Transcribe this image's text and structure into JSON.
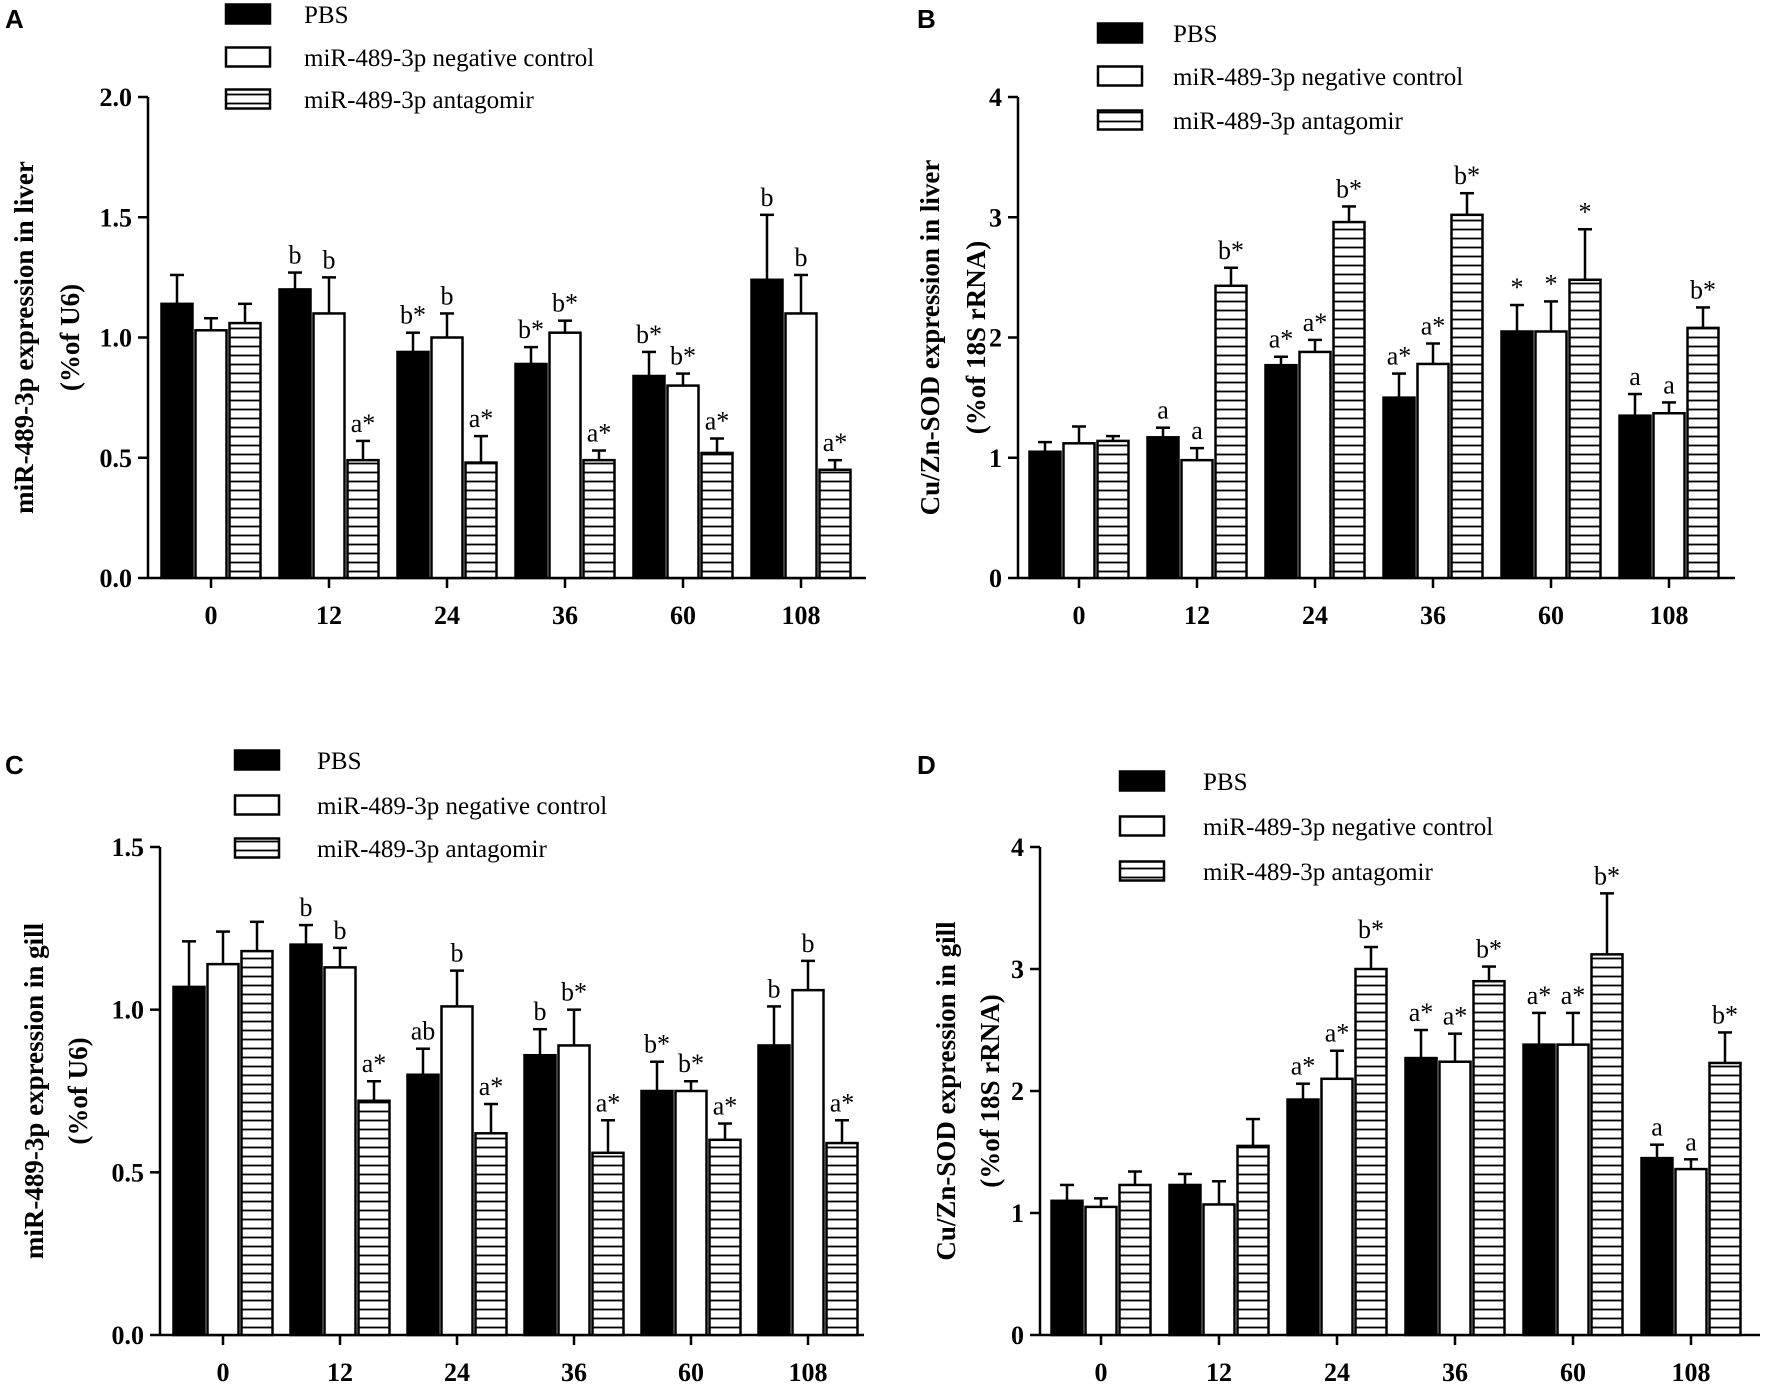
{
  "series_names": [
    "PBS",
    "miR-489-3p negative control",
    "miR-489-3p antagomir"
  ],
  "colors": {
    "pbs": "#000000",
    "bar_outline": "#000000",
    "background": "#ffffff"
  },
  "chart_data": [
    {
      "panel": "A",
      "type": "bar",
      "ylabel_line1": "miR-489-3p expression in liver",
      "ylabel_line2": "(%of U6)",
      "categories": [
        "0",
        "12",
        "24",
        "36",
        "60",
        "108"
      ],
      "ylim": [
        0,
        2.0
      ],
      "yticks": [
        "0.0",
        "0.5",
        "1.0",
        "1.5",
        "2.0"
      ],
      "ytick_values": [
        0,
        0.5,
        1.0,
        1.5,
        2.0
      ],
      "series": [
        {
          "name": "PBS",
          "values": [
            1.14,
            1.2,
            0.94,
            0.89,
            0.84,
            1.24
          ],
          "errors": [
            0.12,
            0.07,
            0.08,
            0.07,
            0.1,
            0.27
          ],
          "labels": [
            "",
            "b",
            "b*",
            "b*",
            "b*",
            "b"
          ]
        },
        {
          "name": "miR-489-3p negative control",
          "values": [
            1.03,
            1.1,
            1.0,
            1.02,
            0.8,
            1.1
          ],
          "errors": [
            0.05,
            0.15,
            0.1,
            0.05,
            0.05,
            0.16
          ],
          "labels": [
            "",
            "b",
            "b",
            "b*",
            "b*",
            "b"
          ]
        },
        {
          "name": "miR-489-3p antagomir",
          "values": [
            1.06,
            0.49,
            0.48,
            0.49,
            0.52,
            0.45
          ],
          "errors": [
            0.08,
            0.08,
            0.11,
            0.04,
            0.06,
            0.04
          ],
          "labels": [
            "",
            "a*",
            "a*",
            "a*",
            "a*",
            "a*"
          ]
        }
      ]
    },
    {
      "panel": "B",
      "type": "bar",
      "ylabel_line1": "Cu/Zn-SOD expression in liver",
      "ylabel_line2": "(%of 18S rRNA)",
      "categories": [
        "0",
        "12",
        "24",
        "36",
        "60",
        "108"
      ],
      "ylim": [
        0,
        4
      ],
      "yticks": [
        "0",
        "1",
        "2",
        "3",
        "4"
      ],
      "ytick_values": [
        0,
        1,
        2,
        3,
        4
      ],
      "series": [
        {
          "name": "PBS",
          "values": [
            1.05,
            1.17,
            1.77,
            1.5,
            2.05,
            1.35
          ],
          "errors": [
            0.08,
            0.08,
            0.07,
            0.2,
            0.22,
            0.18
          ],
          "labels": [
            "",
            "a",
            "a*",
            "a*",
            "*",
            "a"
          ]
        },
        {
          "name": "miR-489-3p negative control",
          "values": [
            1.12,
            0.98,
            1.88,
            1.78,
            2.05,
            1.37
          ],
          "errors": [
            0.14,
            0.1,
            0.1,
            0.17,
            0.25,
            0.09
          ],
          "labels": [
            "",
            "a",
            "a*",
            "a*",
            "*",
            "a"
          ]
        },
        {
          "name": "miR-489-3p antagomir",
          "values": [
            1.14,
            2.43,
            2.96,
            3.02,
            2.48,
            2.08
          ],
          "errors": [
            0.04,
            0.15,
            0.13,
            0.18,
            0.42,
            0.17
          ],
          "labels": [
            "",
            "b*",
            "b*",
            "b*",
            "*",
            "b*"
          ]
        }
      ]
    },
    {
      "panel": "C",
      "type": "bar",
      "ylabel_line1": "miR-489-3p expression in gill",
      "ylabel_line2": "(%of U6)",
      "categories": [
        "0",
        "12",
        "24",
        "36",
        "60",
        "108"
      ],
      "ylim": [
        0,
        1.5
      ],
      "yticks": [
        "0.0",
        "0.5",
        "1.0",
        "1.5"
      ],
      "ytick_values": [
        0,
        0.5,
        1.0,
        1.5
      ],
      "series": [
        {
          "name": "PBS",
          "values": [
            1.07,
            1.2,
            0.8,
            0.86,
            0.75,
            0.89
          ],
          "errors": [
            0.14,
            0.06,
            0.08,
            0.08,
            0.09,
            0.12
          ],
          "labels": [
            "",
            "b",
            "ab",
            "b",
            "b*",
            "b"
          ]
        },
        {
          "name": "miR-489-3p negative control",
          "values": [
            1.14,
            1.13,
            1.01,
            0.89,
            0.75,
            1.06
          ],
          "errors": [
            0.1,
            0.06,
            0.11,
            0.11,
            0.03,
            0.09
          ],
          "labels": [
            "",
            "b",
            "b",
            "b*",
            "b*",
            "b"
          ]
        },
        {
          "name": "miR-489-3p antagomir",
          "values": [
            1.18,
            0.72,
            0.62,
            0.56,
            0.6,
            0.59
          ],
          "errors": [
            0.09,
            0.06,
            0.09,
            0.1,
            0.05,
            0.07
          ],
          "labels": [
            "",
            "a*",
            "a*",
            "a*",
            "a*",
            "a*"
          ]
        }
      ]
    },
    {
      "panel": "D",
      "type": "bar",
      "ylabel_line1": "Cu/Zn-SOD expression in gill",
      "ylabel_line2": "(%of 18S rRNA)",
      "categories": [
        "0",
        "12",
        "24",
        "36",
        "60",
        "108"
      ],
      "ylim": [
        0,
        4
      ],
      "yticks": [
        "0",
        "1",
        "2",
        "3",
        "4"
      ],
      "ytick_values": [
        0,
        1,
        2,
        3,
        4
      ],
      "series": [
        {
          "name": "PBS",
          "values": [
            1.1,
            1.23,
            1.93,
            2.27,
            2.38,
            1.45
          ],
          "errors": [
            0.13,
            0.09,
            0.13,
            0.23,
            0.26,
            0.11
          ],
          "labels": [
            "",
            "",
            "a*",
            "a*",
            "a*",
            "a"
          ]
        },
        {
          "name": "miR-489-3p negative control",
          "values": [
            1.05,
            1.07,
            2.1,
            2.24,
            2.38,
            1.36
          ],
          "errors": [
            0.07,
            0.19,
            0.23,
            0.23,
            0.26,
            0.08
          ],
          "labels": [
            "",
            "",
            "a*",
            "a*",
            "a*",
            "a"
          ]
        },
        {
          "name": "miR-489-3p antagomir",
          "values": [
            1.23,
            1.55,
            3.0,
            2.9,
            3.12,
            2.23
          ],
          "errors": [
            0.11,
            0.22,
            0.18,
            0.12,
            0.5,
            0.25
          ],
          "labels": [
            "",
            "",
            "b*",
            "b*",
            "b*",
            "b*"
          ]
        }
      ]
    }
  ]
}
